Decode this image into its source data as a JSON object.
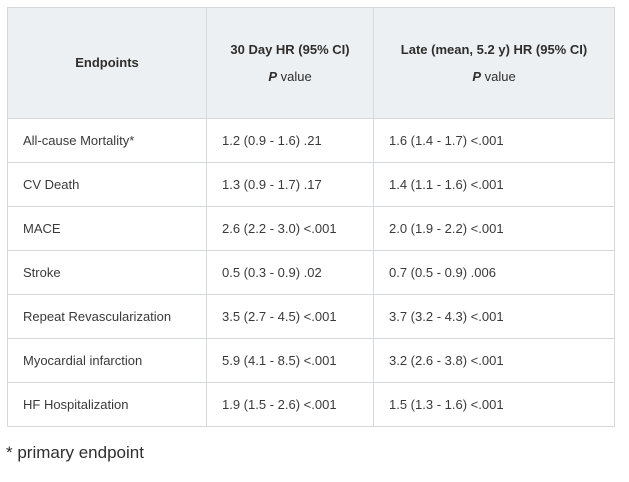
{
  "table": {
    "headers": {
      "endpoints": "Endpoints",
      "day30": "30 Day HR (95% CI)",
      "late": "Late (mean, 5.2 y) HR (95% CI)",
      "p_italic": "P",
      "p_rest": " value"
    },
    "rows": [
      [
        "All-cause Mortality*",
        "1.2 (0.9 - 1.6) .21",
        "1.6 (1.4 - 1.7) <.001"
      ],
      [
        "CV Death",
        "1.3 (0.9 - 1.7) .17",
        "1.4 (1.1 - 1.6)  <.001"
      ],
      [
        "MACE",
        "2.6 (2.2 - 3.0) <.001",
        "2.0 (1.9 - 2.2)  <.001"
      ],
      [
        "Stroke",
        "0.5 (0.3 - 0.9) .02",
        "0.7 (0.5 - 0.9) .006"
      ],
      [
        "Repeat Revascularization",
        "3.5 (2.7 - 4.5) <.001",
        "3.7 (3.2 - 4.3)  <.001"
      ],
      [
        "Myocardial infarction",
        "5.9 (4.1 - 8.5) <.001",
        "3.2 (2.6 - 3.8) <.001"
      ],
      [
        "HF Hospitalization",
        "1.9 (1.5 - 2.6) <.001",
        "1.5 (1.3 - 1.6) <.001"
      ]
    ]
  },
  "footnote": "* primary endpoint",
  "colors": {
    "header_bg": "#edf0f2",
    "border": "#d6d9dc",
    "text": "#3a3a3a"
  }
}
